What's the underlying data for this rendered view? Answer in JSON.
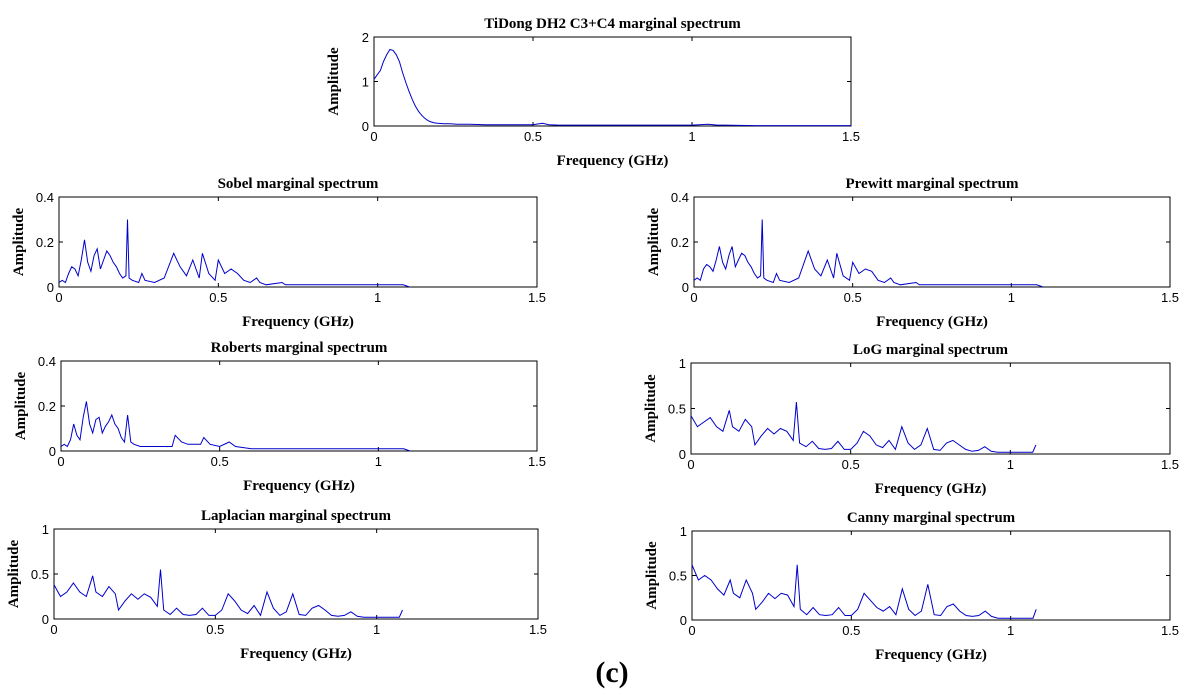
{
  "figure": {
    "caption": "(c)"
  },
  "chart_data": [
    {
      "type": "line",
      "title": "TiDong DH2 C3+C4 marginal spectrum",
      "xlabel": "Frequency (GHz)",
      "ylabel": "Amplitude",
      "xlim": [
        0,
        1.5
      ],
      "ylim": [
        0,
        2
      ],
      "xticks": [
        "0",
        "0.5",
        "1",
        "1.5"
      ],
      "yticks": [
        "0",
        "1",
        "2"
      ],
      "grid": false,
      "series": [
        {
          "name": "marginal spectrum",
          "color": "#0000cc",
          "x": [
            0,
            0.01,
            0.02,
            0.03,
            0.04,
            0.05,
            0.06,
            0.07,
            0.08,
            0.09,
            0.1,
            0.11,
            0.12,
            0.13,
            0.14,
            0.15,
            0.16,
            0.17,
            0.18,
            0.19,
            0.2,
            0.22,
            0.24,
            0.26,
            0.28,
            0.3,
            0.35,
            0.4,
            0.45,
            0.5,
            0.53,
            0.55,
            0.58,
            0.6,
            0.7,
            0.8,
            0.9,
            1.0,
            1.05,
            1.08,
            1.1,
            1.2,
            1.3,
            1.4,
            1.5
          ],
          "y": [
            1.05,
            1.15,
            1.25,
            1.45,
            1.6,
            1.72,
            1.7,
            1.6,
            1.45,
            1.2,
            0.98,
            0.78,
            0.6,
            0.45,
            0.33,
            0.24,
            0.17,
            0.12,
            0.09,
            0.07,
            0.06,
            0.05,
            0.05,
            0.04,
            0.04,
            0.04,
            0.03,
            0.03,
            0.03,
            0.03,
            0.06,
            0.03,
            0.02,
            0.02,
            0.02,
            0.02,
            0.02,
            0.02,
            0.04,
            0.02,
            0.02,
            0.01,
            0.01,
            0.01,
            0.01
          ]
        }
      ]
    },
    {
      "type": "line",
      "title": "Sobel marginal spectrum",
      "xlabel": "Frequency (GHz)",
      "ylabel": "Amplitude",
      "xlim": [
        0,
        1.5
      ],
      "ylim": [
        0,
        0.4
      ],
      "xticks": [
        "0",
        "0.5",
        "1",
        "1.5"
      ],
      "yticks": [
        "0",
        "0.2",
        "0.4"
      ],
      "grid": false,
      "series": [
        {
          "name": "marginal spectrum",
          "color": "#0000cc",
          "x": [
            0,
            0.01,
            0.02,
            0.03,
            0.04,
            0.05,
            0.06,
            0.07,
            0.08,
            0.09,
            0.1,
            0.11,
            0.12,
            0.13,
            0.14,
            0.15,
            0.16,
            0.17,
            0.18,
            0.19,
            0.2,
            0.21,
            0.215,
            0.22,
            0.23,
            0.25,
            0.26,
            0.27,
            0.3,
            0.33,
            0.36,
            0.38,
            0.4,
            0.42,
            0.44,
            0.45,
            0.47,
            0.49,
            0.5,
            0.52,
            0.54,
            0.56,
            0.58,
            0.6,
            0.62,
            0.63,
            0.65,
            0.7,
            0.71,
            0.72,
            0.8,
            0.9,
            1.0,
            1.08,
            1.1
          ],
          "y": [
            0.02,
            0.03,
            0.02,
            0.06,
            0.09,
            0.08,
            0.05,
            0.12,
            0.21,
            0.11,
            0.07,
            0.14,
            0.17,
            0.08,
            0.12,
            0.16,
            0.14,
            0.11,
            0.09,
            0.06,
            0.04,
            0.05,
            0.3,
            0.04,
            0.03,
            0.02,
            0.06,
            0.03,
            0.02,
            0.04,
            0.15,
            0.09,
            0.05,
            0.12,
            0.04,
            0.15,
            0.06,
            0.03,
            0.12,
            0.06,
            0.08,
            0.06,
            0.03,
            0.02,
            0.04,
            0.02,
            0.01,
            0.02,
            0.01,
            0.01,
            0.01,
            0.01,
            0.01,
            0.01,
            0
          ]
        }
      ]
    },
    {
      "type": "line",
      "title": "Prewitt marginal spectrum",
      "xlabel": "Frequency (GHz)",
      "ylabel": "Amplitude",
      "xlim": [
        0,
        1.5
      ],
      "ylim": [
        0,
        0.4
      ],
      "xticks": [
        "0",
        "0.5",
        "1",
        "1.5"
      ],
      "yticks": [
        "0",
        "0.2",
        "0.4"
      ],
      "grid": false,
      "series": [
        {
          "name": "marginal spectrum",
          "color": "#0000cc",
          "x": [
            0,
            0.01,
            0.02,
            0.03,
            0.04,
            0.05,
            0.06,
            0.07,
            0.08,
            0.09,
            0.1,
            0.11,
            0.12,
            0.13,
            0.14,
            0.15,
            0.16,
            0.17,
            0.18,
            0.19,
            0.2,
            0.21,
            0.215,
            0.22,
            0.23,
            0.25,
            0.26,
            0.27,
            0.3,
            0.33,
            0.36,
            0.38,
            0.4,
            0.42,
            0.44,
            0.45,
            0.47,
            0.49,
            0.5,
            0.52,
            0.54,
            0.56,
            0.58,
            0.6,
            0.62,
            0.63,
            0.65,
            0.7,
            0.71,
            0.72,
            0.8,
            0.9,
            1.0,
            1.08,
            1.1
          ],
          "y": [
            0.03,
            0.04,
            0.03,
            0.08,
            0.1,
            0.09,
            0.07,
            0.12,
            0.18,
            0.11,
            0.08,
            0.14,
            0.18,
            0.09,
            0.12,
            0.15,
            0.14,
            0.11,
            0.09,
            0.06,
            0.04,
            0.05,
            0.3,
            0.04,
            0.03,
            0.02,
            0.06,
            0.03,
            0.02,
            0.04,
            0.16,
            0.08,
            0.05,
            0.12,
            0.04,
            0.15,
            0.05,
            0.03,
            0.11,
            0.06,
            0.08,
            0.07,
            0.03,
            0.02,
            0.04,
            0.02,
            0.01,
            0.02,
            0.01,
            0.01,
            0.01,
            0.01,
            0.01,
            0.01,
            0
          ]
        }
      ]
    },
    {
      "type": "line",
      "title": "Roberts marginal spectrum",
      "xlabel": "Frequency (GHz)",
      "ylabel": "Amplitude",
      "xlim": [
        0,
        1.5
      ],
      "ylim": [
        0,
        0.4
      ],
      "xticks": [
        "0",
        "0.5",
        "1",
        "1.5"
      ],
      "yticks": [
        "0",
        "0.2",
        "0.4"
      ],
      "grid": false,
      "series": [
        {
          "name": "marginal spectrum",
          "color": "#0000cc",
          "x": [
            0,
            0.01,
            0.02,
            0.03,
            0.04,
            0.05,
            0.06,
            0.07,
            0.08,
            0.09,
            0.1,
            0.11,
            0.12,
            0.13,
            0.14,
            0.15,
            0.16,
            0.17,
            0.18,
            0.19,
            0.2,
            0.21,
            0.22,
            0.23,
            0.25,
            0.28,
            0.3,
            0.35,
            0.36,
            0.38,
            0.4,
            0.42,
            0.44,
            0.45,
            0.47,
            0.5,
            0.53,
            0.55,
            0.6,
            0.7,
            0.8,
            0.9,
            1.0,
            1.08,
            1.1
          ],
          "y": [
            0.02,
            0.03,
            0.02,
            0.05,
            0.12,
            0.07,
            0.05,
            0.15,
            0.22,
            0.12,
            0.08,
            0.14,
            0.15,
            0.08,
            0.11,
            0.13,
            0.16,
            0.12,
            0.1,
            0.06,
            0.04,
            0.16,
            0.04,
            0.03,
            0.02,
            0.02,
            0.02,
            0.02,
            0.07,
            0.04,
            0.03,
            0.03,
            0.03,
            0.06,
            0.03,
            0.02,
            0.04,
            0.02,
            0.01,
            0.01,
            0.01,
            0.01,
            0.01,
            0.01,
            0
          ]
        }
      ]
    },
    {
      "type": "line",
      "title": "LoG marginal spectrum",
      "xlabel": "Frequency (GHz)",
      "ylabel": "Amplitude",
      "xlim": [
        0,
        1.5
      ],
      "ylim": [
        0,
        1
      ],
      "xticks": [
        "0",
        "0.5",
        "1",
        "1.5"
      ],
      "yticks": [
        "0",
        "0.5",
        "1"
      ],
      "grid": false,
      "series": [
        {
          "name": "marginal spectrum",
          "color": "#0000cc",
          "x": [
            0,
            0.02,
            0.04,
            0.06,
            0.08,
            0.1,
            0.12,
            0.13,
            0.15,
            0.17,
            0.19,
            0.2,
            0.22,
            0.24,
            0.26,
            0.28,
            0.3,
            0.32,
            0.33,
            0.34,
            0.36,
            0.38,
            0.4,
            0.42,
            0.44,
            0.46,
            0.48,
            0.5,
            0.52,
            0.54,
            0.56,
            0.58,
            0.6,
            0.62,
            0.64,
            0.66,
            0.68,
            0.7,
            0.72,
            0.74,
            0.76,
            0.78,
            0.8,
            0.82,
            0.84,
            0.86,
            0.88,
            0.9,
            0.92,
            0.94,
            0.96,
            0.98,
            1.0,
            1.02,
            1.04,
            1.06,
            1.07,
            1.08
          ],
          "y": [
            0.42,
            0.3,
            0.35,
            0.4,
            0.3,
            0.25,
            0.48,
            0.3,
            0.25,
            0.38,
            0.3,
            0.1,
            0.2,
            0.28,
            0.22,
            0.28,
            0.25,
            0.15,
            0.57,
            0.12,
            0.08,
            0.14,
            0.06,
            0.05,
            0.06,
            0.14,
            0.05,
            0.05,
            0.12,
            0.25,
            0.2,
            0.1,
            0.07,
            0.15,
            0.05,
            0.3,
            0.12,
            0.05,
            0.1,
            0.28,
            0.05,
            0.04,
            0.12,
            0.15,
            0.1,
            0.05,
            0.03,
            0.04,
            0.08,
            0.03,
            0.02,
            0.02,
            0.02,
            0.02,
            0.02,
            0.02,
            0.02,
            0.1
          ]
        }
      ]
    },
    {
      "type": "line",
      "title": "Laplacian marginal spectrum",
      "xlabel": "Frequency (GHz)",
      "ylabel": "Amplitude",
      "xlim": [
        0,
        1.5
      ],
      "ylim": [
        0,
        1
      ],
      "xticks": [
        "0",
        "0.5",
        "1",
        "1.5"
      ],
      "yticks": [
        "0",
        "0.5",
        "1"
      ],
      "grid": false,
      "series": [
        {
          "name": "marginal spectrum",
          "color": "#0000cc",
          "x": [
            0,
            0.02,
            0.04,
            0.06,
            0.08,
            0.1,
            0.12,
            0.13,
            0.15,
            0.17,
            0.19,
            0.2,
            0.22,
            0.24,
            0.26,
            0.28,
            0.3,
            0.32,
            0.33,
            0.34,
            0.36,
            0.38,
            0.4,
            0.42,
            0.44,
            0.46,
            0.48,
            0.5,
            0.52,
            0.54,
            0.56,
            0.58,
            0.6,
            0.62,
            0.64,
            0.66,
            0.68,
            0.7,
            0.72,
            0.74,
            0.76,
            0.78,
            0.8,
            0.82,
            0.84,
            0.86,
            0.88,
            0.9,
            0.92,
            0.94,
            0.96,
            0.98,
            1.0,
            1.02,
            1.04,
            1.06,
            1.07,
            1.08
          ],
          "y": [
            0.38,
            0.25,
            0.3,
            0.4,
            0.3,
            0.25,
            0.48,
            0.3,
            0.25,
            0.36,
            0.28,
            0.1,
            0.2,
            0.28,
            0.22,
            0.28,
            0.24,
            0.14,
            0.55,
            0.1,
            0.05,
            0.12,
            0.05,
            0.04,
            0.05,
            0.12,
            0.04,
            0.04,
            0.1,
            0.28,
            0.2,
            0.1,
            0.06,
            0.15,
            0.04,
            0.3,
            0.12,
            0.04,
            0.08,
            0.28,
            0.05,
            0.04,
            0.12,
            0.15,
            0.1,
            0.04,
            0.03,
            0.04,
            0.08,
            0.03,
            0.02,
            0.02,
            0.02,
            0.02,
            0.02,
            0.02,
            0.02,
            0.1
          ]
        }
      ]
    },
    {
      "type": "line",
      "title": "Canny marginal spectrum",
      "xlabel": "Frequency (GHz)",
      "ylabel": "Amplitude",
      "xlim": [
        0,
        1.5
      ],
      "ylim": [
        0,
        1
      ],
      "xticks": [
        "0",
        "0.5",
        "1",
        "1.5"
      ],
      "yticks": [
        "0",
        "0.5",
        "1"
      ],
      "grid": false,
      "series": [
        {
          "name": "marginal spectrum",
          "color": "#0000cc",
          "x": [
            0,
            0.02,
            0.04,
            0.06,
            0.08,
            0.1,
            0.12,
            0.13,
            0.15,
            0.17,
            0.19,
            0.2,
            0.22,
            0.24,
            0.26,
            0.28,
            0.3,
            0.32,
            0.33,
            0.34,
            0.36,
            0.38,
            0.4,
            0.42,
            0.44,
            0.46,
            0.48,
            0.5,
            0.52,
            0.54,
            0.56,
            0.58,
            0.6,
            0.62,
            0.64,
            0.66,
            0.68,
            0.7,
            0.72,
            0.74,
            0.76,
            0.78,
            0.8,
            0.82,
            0.84,
            0.86,
            0.88,
            0.9,
            0.92,
            0.94,
            0.96,
            0.98,
            1.0,
            1.02,
            1.04,
            1.06,
            1.07,
            1.08
          ],
          "y": [
            0.62,
            0.45,
            0.5,
            0.45,
            0.35,
            0.28,
            0.45,
            0.3,
            0.25,
            0.45,
            0.3,
            0.12,
            0.2,
            0.3,
            0.24,
            0.3,
            0.28,
            0.15,
            0.62,
            0.12,
            0.06,
            0.14,
            0.06,
            0.05,
            0.06,
            0.14,
            0.05,
            0.05,
            0.12,
            0.3,
            0.22,
            0.14,
            0.1,
            0.15,
            0.06,
            0.35,
            0.12,
            0.05,
            0.1,
            0.4,
            0.06,
            0.05,
            0.15,
            0.18,
            0.1,
            0.05,
            0.04,
            0.05,
            0.1,
            0.04,
            0.02,
            0.02,
            0.02,
            0.02,
            0.02,
            0.02,
            0.02,
            0.12
          ]
        }
      ]
    }
  ]
}
